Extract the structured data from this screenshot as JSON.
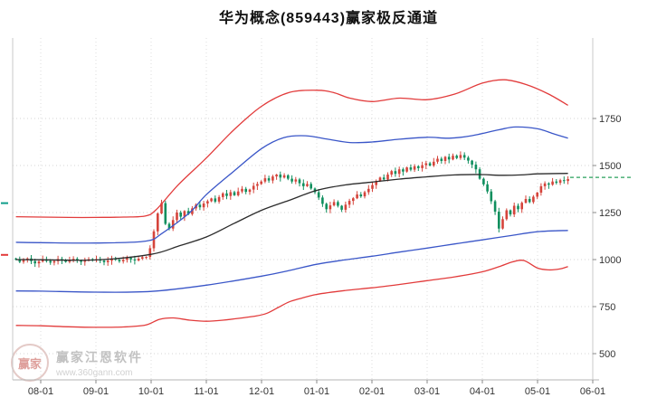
{
  "title": "华为概念(859443)赢家极反通道",
  "watermark": {
    "brand": "赢家江恩软件",
    "url": "www.360gann.com",
    "logo_text": "赢家"
  },
  "chart_data": {
    "type": "candlestick",
    "title": "华为概念(859443)赢家极反通道",
    "x_labels": [
      "08-01",
      "09-01",
      "10-01",
      "11-01",
      "12-01",
      "01-01",
      "02-01",
      "03-01",
      "04-01",
      "05-01",
      "06-01"
    ],
    "y_ticks": [
      1750,
      1500,
      1250,
      1000,
      750,
      500
    ],
    "ylim_visible": [
      500,
      1750
    ],
    "grid": true,
    "legend": "none",
    "candles": {
      "up_color": "#d5443b",
      "down_color": "#0f8f5e",
      "closes": [
        1000,
        988,
        997,
        1006,
        992,
        980,
        990,
        1001,
        993,
        984,
        992,
        1003,
        997,
        988,
        996,
        1004,
        996,
        988,
        994,
        1002,
        996,
        1002,
        994,
        986,
        994,
        1005,
        999,
        991,
        999,
        1009,
        1001,
        995,
        1005,
        1013,
        1014,
        1060,
        1150,
        1245,
        1300,
        1190,
        1165,
        1210,
        1250,
        1228,
        1258,
        1242,
        1272,
        1292,
        1278,
        1298,
        1310,
        1325,
        1308,
        1332,
        1352,
        1338,
        1358,
        1342,
        1362,
        1376,
        1360,
        1372,
        1392,
        1402,
        1415,
        1432,
        1420,
        1442,
        1452,
        1436,
        1448,
        1430,
        1415,
        1426,
        1406,
        1390,
        1402,
        1378,
        1358,
        1330,
        1296,
        1268,
        1288,
        1306,
        1286,
        1265,
        1292,
        1312,
        1326,
        1346,
        1336,
        1358,
        1376,
        1396,
        1416,
        1436,
        1426,
        1452,
        1470,
        1456,
        1480,
        1468,
        1490,
        1478,
        1496,
        1486,
        1502,
        1512,
        1500,
        1520,
        1536,
        1524,
        1546,
        1532,
        1552,
        1540,
        1556,
        1542,
        1526,
        1505,
        1480,
        1430,
        1400,
        1362,
        1310,
        1255,
        1165,
        1215,
        1262,
        1240,
        1286,
        1268,
        1302,
        1322,
        1306,
        1334,
        1356,
        1390,
        1405,
        1398,
        1415,
        1408,
        1422,
        1418,
        1428
      ]
    },
    "channels": [
      {
        "name": "upper-outer-red",
        "color": "#e23b3b",
        "points": [
          [
            -0.45,
            1228
          ],
          [
            0,
            1226
          ],
          [
            0.5,
            1224
          ],
          [
            1,
            1224
          ],
          [
            1.5,
            1226
          ],
          [
            1.9,
            1232
          ],
          [
            2.1,
            1268
          ],
          [
            2.5,
            1400
          ],
          [
            3,
            1540
          ],
          [
            3.5,
            1690
          ],
          [
            4,
            1815
          ],
          [
            4.5,
            1888
          ],
          [
            5,
            1900
          ],
          [
            5.3,
            1888
          ],
          [
            5.6,
            1858
          ],
          [
            6,
            1840
          ],
          [
            6.5,
            1858
          ],
          [
            7,
            1850
          ],
          [
            7.5,
            1880
          ],
          [
            8,
            1938
          ],
          [
            8.4,
            1956
          ],
          [
            8.8,
            1930
          ],
          [
            9.2,
            1880
          ],
          [
            9.55,
            1820
          ]
        ]
      },
      {
        "name": "upper-inner-blue",
        "color": "#3a56c8",
        "points": [
          [
            -0.45,
            1092
          ],
          [
            0,
            1090
          ],
          [
            1,
            1088
          ],
          [
            1.9,
            1098
          ],
          [
            2.2,
            1140
          ],
          [
            2.7,
            1250
          ],
          [
            3,
            1345
          ],
          [
            3.5,
            1470
          ],
          [
            4,
            1590
          ],
          [
            4.4,
            1648
          ],
          [
            4.8,
            1658
          ],
          [
            5.2,
            1640
          ],
          [
            5.6,
            1622
          ],
          [
            6,
            1625
          ],
          [
            6.5,
            1640
          ],
          [
            7,
            1650
          ],
          [
            7.4,
            1645
          ],
          [
            7.8,
            1658
          ],
          [
            8.3,
            1690
          ],
          [
            8.6,
            1705
          ],
          [
            9,
            1695
          ],
          [
            9.3,
            1668
          ],
          [
            9.55,
            1645
          ]
        ]
      },
      {
        "name": "middle-black",
        "color": "#2b2b2b",
        "points": [
          [
            -0.45,
            1000
          ],
          [
            0,
            999
          ],
          [
            1,
            998
          ],
          [
            2,
            1028
          ],
          [
            2.5,
            1072
          ],
          [
            3,
            1120
          ],
          [
            3.5,
            1192
          ],
          [
            4,
            1262
          ],
          [
            4.5,
            1315
          ],
          [
            5,
            1368
          ],
          [
            5.5,
            1396
          ],
          [
            6,
            1412
          ],
          [
            6.5,
            1428
          ],
          [
            7,
            1440
          ],
          [
            7.5,
            1450
          ],
          [
            8,
            1452
          ],
          [
            8.3,
            1448
          ],
          [
            8.7,
            1450
          ],
          [
            9,
            1456
          ],
          [
            9.55,
            1458
          ]
        ]
      },
      {
        "name": "lower-inner-blue",
        "color": "#3a56c8",
        "points": [
          [
            -0.45,
            833
          ],
          [
            0,
            832
          ],
          [
            1,
            827
          ],
          [
            2,
            831
          ],
          [
            3,
            864
          ],
          [
            4,
            912
          ],
          [
            4.5,
            942
          ],
          [
            5,
            975
          ],
          [
            5.5,
            998
          ],
          [
            6,
            1018
          ],
          [
            6.5,
            1040
          ],
          [
            7,
            1061
          ],
          [
            7.5,
            1083
          ],
          [
            8,
            1105
          ],
          [
            8.5,
            1127
          ],
          [
            9,
            1148
          ],
          [
            9.55,
            1155
          ]
        ]
      },
      {
        "name": "lower-outer-red",
        "color": "#e23b3b",
        "points": [
          [
            -0.45,
            650
          ],
          [
            0,
            648
          ],
          [
            0.5,
            643
          ],
          [
            1,
            640
          ],
          [
            1.5,
            642
          ],
          [
            1.9,
            652
          ],
          [
            2.15,
            682
          ],
          [
            2.4,
            690
          ],
          [
            2.7,
            678
          ],
          [
            3,
            672
          ],
          [
            3.3,
            678
          ],
          [
            3.6,
            688
          ],
          [
            3.9,
            700
          ],
          [
            4.1,
            715
          ],
          [
            4.3,
            745
          ],
          [
            4.5,
            775
          ],
          [
            4.7,
            793
          ],
          [
            5,
            815
          ],
          [
            5.5,
            835
          ],
          [
            6,
            850
          ],
          [
            6.5,
            868
          ],
          [
            7,
            888
          ],
          [
            7.5,
            908
          ],
          [
            8,
            935
          ],
          [
            8.3,
            962
          ],
          [
            8.55,
            988
          ],
          [
            8.75,
            995
          ],
          [
            9,
            955
          ],
          [
            9.2,
            945
          ],
          [
            9.4,
            950
          ],
          [
            9.55,
            963
          ]
        ]
      }
    ],
    "price_line": {
      "value": 1437,
      "color": "#28a05c",
      "style": "dashed"
    },
    "left_axis_markers": [
      {
        "value": 1300,
        "color": "#0f9d8a"
      },
      {
        "value": 1025,
        "color": "#e23b3b"
      }
    ]
  }
}
